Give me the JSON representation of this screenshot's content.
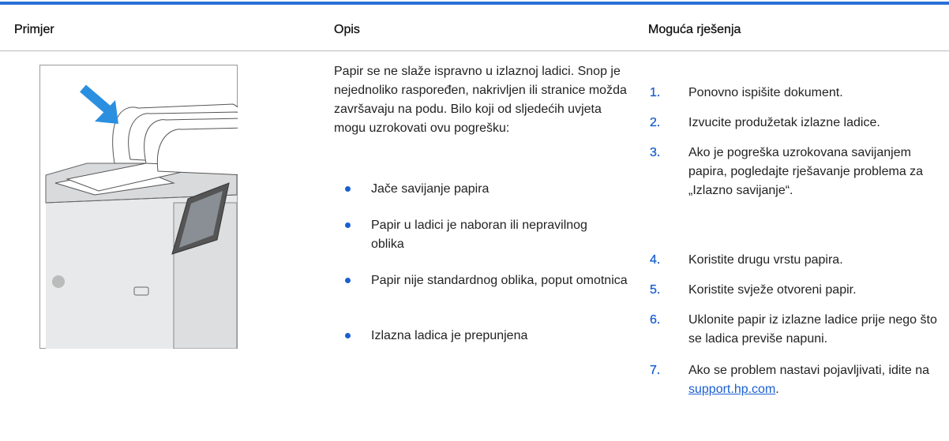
{
  "table": {
    "headers": [
      "Primjer",
      "Opis",
      "Moguća rješenja"
    ],
    "description": {
      "intro": "Papir se ne slaže ispravno u izlaznoj ladici. Snop je nejednoliko raspoređen, nakrivljen ili stranice možda završavaju na podu. Bilo koji od sljedećih uvjeta mogu uzrokovati ovu pogrešku:",
      "bullets": [
        "Jače savijanje papira",
        "Papir u ladici je naboran ili nepravilnog oblika",
        "Papir nije standardnog oblika, poput omotnica",
        "Izlazna ladica je prepunjena"
      ]
    },
    "solutions": [
      {
        "number": "1.",
        "text": "Ponovno ispišite dokument."
      },
      {
        "number": "2.",
        "text": "Izvucite produžetak izlazne ladice."
      },
      {
        "number": "3.",
        "text": "Ako je pogreška uzrokovana savijanjem papira, pogledajte rješavanje problema za „Izlazno savijanje“."
      },
      {
        "number": "4.",
        "text": "Koristite drugu vrstu papira."
      },
      {
        "number": "5.",
        "text": "Koristite svježe otvoreni papir."
      },
      {
        "number": "6.",
        "text": "Uklonite papir iz izlazne ladice prije nego što se ladica previše napuni."
      },
      {
        "number": "7.",
        "text": "Ako se problem nastavi pojavljivati, idite na ",
        "link": "support.hp.com",
        "after": "."
      }
    ]
  }
}
